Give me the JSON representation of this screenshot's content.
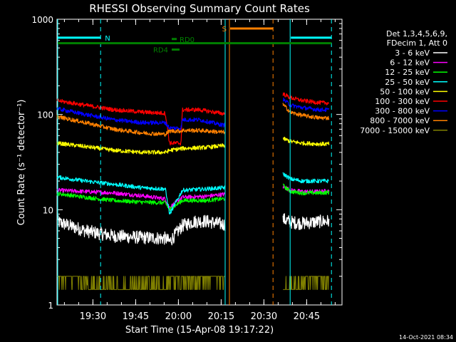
{
  "chart_data": {
    "type": "line",
    "title": "RHESSI Observing Summary Count Rates",
    "xlabel": "Start Time (15-Apr-08 19:17:22)",
    "ylabel": "Count Rate (s⁻¹ detector⁻¹)",
    "yscale": "log",
    "ylim": [
      1,
      1000
    ],
    "xlim_minutes": [
      0,
      100
    ],
    "x_ticks": [
      {
        "label": "19:30",
        "minute": 12.6
      },
      {
        "label": "19:45",
        "minute": 27.6
      },
      {
        "label": "20:00",
        "minute": 42.6
      },
      {
        "label": "20:15",
        "minute": 57.6
      },
      {
        "label": "20:30",
        "minute": 72.6
      },
      {
        "label": "20:45",
        "minute": 87.6
      }
    ],
    "y_ticks": [
      {
        "label": "1",
        "value": 1
      },
      {
        "label": "10",
        "value": 10
      },
      {
        "label": "100",
        "value": 100
      },
      {
        "label": "1000",
        "value": 1000
      }
    ],
    "legend_header": [
      "Det 1,3,4,5,6,9,",
      "FDecim 1, Att 0"
    ],
    "legend_position": "right",
    "series": [
      {
        "name": "3 - 6 keV",
        "color": "#ffffff",
        "x": [
          0,
          10,
          20,
          30,
          38,
          39.5,
          44,
          48,
          52,
          58.4,
          79.2,
          82,
          86,
          92,
          95.5
        ],
        "y": [
          7.5,
          6,
          5.3,
          5.1,
          5.0,
          4.6,
          6.8,
          7.5,
          7.6,
          7.0,
          8.0,
          7.4,
          7.2,
          7.5,
          7.6
        ]
      },
      {
        "name": "6 - 12 keV",
        "color": "#ff00ff",
        "x": [
          0,
          10,
          20,
          30,
          38,
          39.5,
          44,
          52,
          58.4,
          79.2,
          82,
          86,
          92,
          95.5
        ],
        "y": [
          16,
          15.5,
          15,
          14,
          13,
          10.5,
          13.5,
          13.8,
          14.5,
          17.5,
          16,
          15.5,
          15.5,
          15.8
        ]
      },
      {
        "name": "12 - 25 keV",
        "color": "#00ff00",
        "x": [
          0,
          10,
          20,
          30,
          38,
          39.5,
          44,
          52,
          58.4,
          79.2,
          82,
          86,
          92,
          95.5
        ],
        "y": [
          14.8,
          13.5,
          12.5,
          12,
          11.8,
          10,
          12.5,
          12.5,
          13,
          18,
          15.5,
          15,
          15,
          15.2
        ]
      },
      {
        "name": "25 - 50 keV",
        "color": "#00ffff",
        "x": [
          0,
          10,
          20,
          30,
          38,
          39.5,
          44,
          52,
          58.4,
          79.2,
          82,
          86,
          92,
          95.5
        ],
        "y": [
          22,
          20,
          18.5,
          17,
          16.5,
          9,
          16,
          16.5,
          17,
          24,
          21,
          20,
          20,
          20
        ]
      },
      {
        "name": "50 - 100 keV",
        "color": "#ffff00",
        "x": [
          0,
          10,
          20,
          30,
          38,
          39.5,
          44,
          52,
          58.4,
          79.2,
          82,
          86,
          92,
          95.5
        ],
        "y": [
          50,
          46,
          42,
          40,
          40,
          42,
          44,
          45,
          47,
          56,
          52,
          50,
          49,
          49
        ]
      },
      {
        "name": "100 - 300 keV",
        "color": "#ff0000",
        "x": [
          0,
          10,
          20,
          30,
          38,
          39.5,
          43.5,
          44,
          50,
          58.4,
          79.2,
          82,
          86,
          92,
          95.5
        ],
        "y": [
          140,
          125,
          112,
          106,
          103,
          50,
          50,
          112,
          112,
          102,
          165,
          150,
          140,
          133,
          132
        ]
      },
      {
        "name": "300 - 800 keV",
        "color": "#0000ff",
        "x": [
          0,
          10,
          20,
          30,
          38,
          39.5,
          43.5,
          44,
          50,
          58.4,
          79.2,
          82,
          86,
          92,
          95.5
        ],
        "y": [
          115,
          100,
          88,
          82,
          82,
          72,
          72,
          88,
          88,
          77,
          145,
          125,
          118,
          112,
          112
        ]
      },
      {
        "name": "800 - 7000 keV",
        "color": "#ff8000",
        "x": [
          0,
          10,
          20,
          30,
          38,
          39.5,
          43.5,
          44,
          50,
          58.4,
          79.2,
          82,
          86,
          92,
          95.5
        ],
        "y": [
          95,
          82,
          70,
          64,
          62,
          67,
          67,
          68,
          68,
          65,
          128,
          105,
          98,
          92,
          92
        ]
      },
      {
        "name": "7000 - 15000 keV",
        "color": "#808000",
        "x": [
          0,
          10,
          11,
          30,
          38.5,
          39,
          58.4,
          79.2,
          86,
          87,
          95.5
        ],
        "y": [
          2.0,
          2.0,
          1.45,
          1.45,
          1.45,
          2.0,
          2.0,
          1.45,
          1.45,
          2.0,
          2.0
        ]
      }
    ],
    "bars": [
      {
        "label": "N",
        "color": "#00ffff",
        "y": 640,
        "ranges": [
          [
            0,
            15.3
          ],
          [
            81.8,
            96.3
          ]
        ]
      },
      {
        "label": "S",
        "color": "#ff8000",
        "y": 800,
        "ranges": [
          [
            60.5,
            75.8
          ]
        ]
      },
      {
        "label": "",
        "color": "#008000",
        "y": 560,
        "ranges": [
          [
            0,
            96.3
          ]
        ]
      },
      {
        "label": "RD0",
        "color": "#008000",
        "y": 620,
        "ranges": [
          [
            40,
            42
          ]
        ]
      },
      {
        "label": "RD4",
        "color": "#008000",
        "y": 480,
        "ranges": [
          [
            40,
            43
          ]
        ]
      }
    ],
    "solid_lines": [
      {
        "minute": 0,
        "color": "#00ffff"
      },
      {
        "minute": 59.0,
        "color": "#00ffff"
      },
      {
        "minute": 81.8,
        "color": "#00ffff"
      },
      {
        "minute": 60.5,
        "color": "#ff8000"
      }
    ],
    "dashed_lines": [
      {
        "minute": 15.3,
        "color": "#00ffff"
      },
      {
        "minute": 96.3,
        "color": "#00ffff"
      },
      {
        "minute": 75.8,
        "color": "#ff8000"
      }
    ],
    "gaps": [
      [
        59.0,
        79.2
      ]
    ]
  },
  "footer": {
    "timestamp": "14-Oct-2021 08:34"
  }
}
